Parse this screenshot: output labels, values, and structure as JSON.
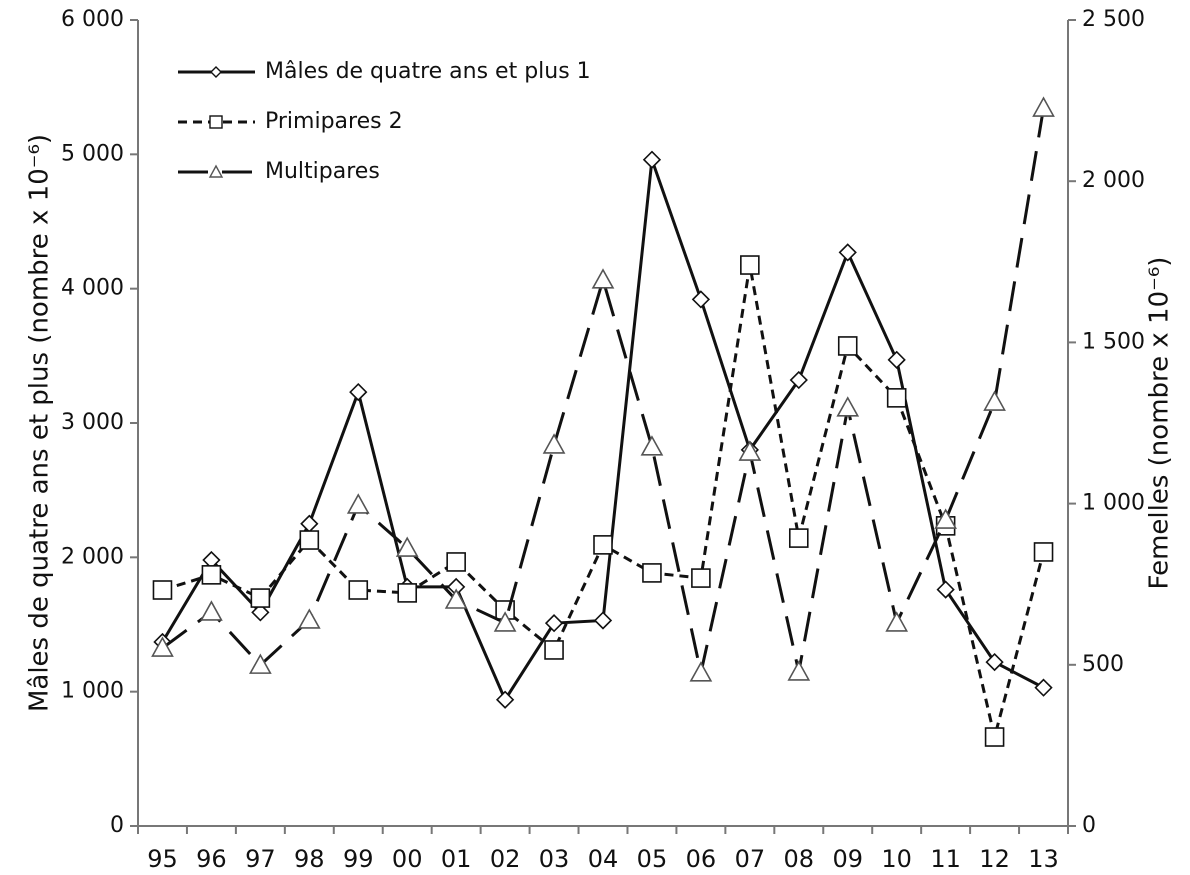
{
  "chart_data": {
    "type": "line",
    "categories": [
      "95",
      "96",
      "97",
      "98",
      "99",
      "00",
      "01",
      "02",
      "03",
      "04",
      "05",
      "06",
      "07",
      "08",
      "09",
      "10",
      "11",
      "12",
      "13"
    ],
    "y_label": "Mâles de quatre ans et plus (nombre x 10⁻⁶)",
    "y2_label": "Femelles (nombre x 10⁻⁶)",
    "ylim": [
      0,
      6000
    ],
    "yticks": [
      {
        "value": 0,
        "label": "0"
      },
      {
        "value": 1000,
        "label": "1 000"
      },
      {
        "value": 2000,
        "label": "2 000"
      },
      {
        "value": 3000,
        "label": "3 000"
      },
      {
        "value": 4000,
        "label": "4 000"
      },
      {
        "value": 5000,
        "label": "5 000"
      },
      {
        "value": 6000,
        "label": "6 000"
      }
    ],
    "y2lim": [
      0,
      2500
    ],
    "y2ticks": [
      {
        "value": 0,
        "label": "0"
      },
      {
        "value": 500,
        "label": "500"
      },
      {
        "value": 1000,
        "label": "1 000"
      },
      {
        "value": 1500,
        "label": "1 500"
      },
      {
        "value": 2000,
        "label": "2 000"
      },
      {
        "value": 2500,
        "label": "2 500"
      }
    ],
    "legend": "top-left",
    "series": [
      {
        "name": "Mâles de quatre ans et plus 1",
        "color": "#111111",
        "marker": "diamond",
        "dash": "solid",
        "values": [
          1370,
          1980,
          1590,
          2250,
          3230,
          1780,
          1780,
          940,
          1510,
          1530,
          4960,
          3920,
          2800,
          3320,
          4270,
          3470,
          1760,
          1220,
          1030
        ]
      },
      {
        "name": "Primipares 2",
        "color": "#111111",
        "marker": "square",
        "dash": "short",
        "axis": "y2",
        "values": [
          732,
          779,
          707,
          887,
          732,
          723,
          819,
          670,
          546,
          872,
          785,
          769,
          1740,
          893,
          1489,
          1328,
          931,
          276,
          850
        ]
      },
      {
        "name": "Multipares",
        "color": "#111111",
        "marker": "triangle",
        "dash": "long",
        "axis": "y2",
        "values": [
          552,
          664,
          499,
          639,
          996,
          862,
          701,
          630,
          1182,
          1694,
          1176,
          475,
          1160,
          478,
          1297,
          630,
          949,
          1315,
          2227
        ]
      }
    ]
  }
}
